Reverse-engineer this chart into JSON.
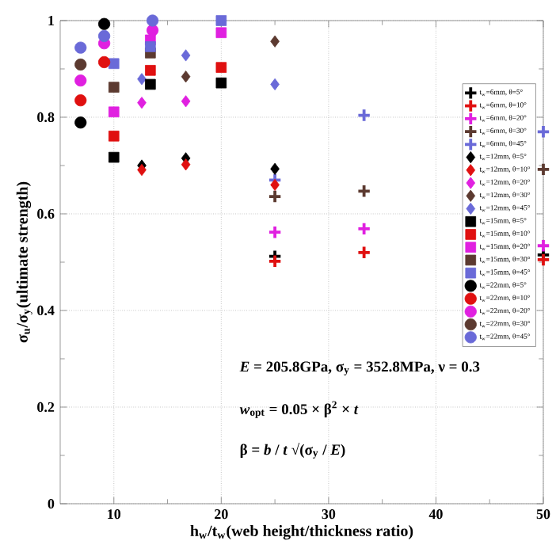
{
  "chart_data": {
    "type": "scatter",
    "xlabel": "h$_{w}$/t$_{w}$(web height/thickness ratio)",
    "ylabel": "σ$_{u}$/σ$_{y}$(ultimate strength)",
    "xlim": [
      5,
      50
    ],
    "ylim": [
      0,
      1
    ],
    "xticks": [
      10,
      20,
      30,
      40,
      50
    ],
    "yticks": [
      0,
      0.2,
      0.4,
      0.6,
      0.8,
      1
    ],
    "grid": true,
    "legend": "right",
    "annotations": [
      "*E* = 205.8GPa, σ$_{y}$ = 352.8MPa, ν = 0.3",
      "*w*$_{opt}$ = 0.05 × β$^{2}$ × *t*",
      "β = *b* / *t* √(σ$_{y}$ / *E*)"
    ],
    "series": [
      {
        "name": "t$_{w}$=6mm, θ=5°",
        "color": "#000000",
        "marker": "cross",
        "x": [
          25,
          50
        ],
        "values": [
          0.512,
          0.515
        ]
      },
      {
        "name": "t$_{w}$=6mm, θ=10°",
        "color": "#e01010",
        "marker": "cross",
        "x": [
          25,
          33.3,
          50
        ],
        "values": [
          0.502,
          0.52,
          0.505
        ]
      },
      {
        "name": "t$_{w}$=6mm, θ=20°",
        "color": "#e020e0",
        "marker": "cross",
        "x": [
          25,
          33.3,
          50
        ],
        "values": [
          0.562,
          0.569,
          0.534
        ]
      },
      {
        "name": "t$_{w}$=6mm, θ=30°",
        "color": "#5c3a30",
        "marker": "cross",
        "x": [
          25,
          33.3,
          50
        ],
        "values": [
          0.636,
          0.647,
          0.692
        ]
      },
      {
        "name": "t$_{w}$=6mm, θ=45°",
        "color": "#6a6ad8",
        "marker": "cross",
        "x": [
          25,
          33.3,
          50
        ],
        "values": [
          0.67,
          0.804,
          0.77
        ]
      },
      {
        "name": "t$_{w}$=12mm, θ=5°",
        "color": "#000000",
        "marker": "diamond",
        "x": [
          12.6,
          16.7,
          25
        ],
        "values": [
          0.7,
          0.715,
          0.693
        ]
      },
      {
        "name": "t$_{w}$=12mm, θ=10°",
        "color": "#e01010",
        "marker": "diamond",
        "x": [
          12.6,
          16.7,
          25
        ],
        "values": [
          0.691,
          0.702,
          0.66
        ]
      },
      {
        "name": "t$_{w}$=12mm, θ=20°",
        "color": "#e020e0",
        "marker": "diamond",
        "x": [
          12.6,
          16.7
        ],
        "values": [
          0.83,
          0.833
        ]
      },
      {
        "name": "t$_{w}$=12mm, θ=30°",
        "color": "#5c3a30",
        "marker": "diamond",
        "x": [
          16.7,
          25
        ],
        "values": [
          0.884,
          0.957
        ]
      },
      {
        "name": "t$_{w}$=12mm, θ=45°",
        "color": "#6a6ad8",
        "marker": "diamond",
        "x": [
          12.6,
          16.7,
          25
        ],
        "values": [
          0.879,
          0.928,
          0.868
        ]
      },
      {
        "name": "t$_{w}$=15mm, θ=5°",
        "color": "#000000",
        "marker": "square",
        "x": [
          10,
          13.4,
          20
        ],
        "values": [
          0.717,
          0.868,
          0.871
        ]
      },
      {
        "name": "t$_{w}$=15mm, θ=10°",
        "color": "#e01010",
        "marker": "square",
        "x": [
          10,
          13.4,
          20
        ],
        "values": [
          0.761,
          0.897,
          0.903
        ]
      },
      {
        "name": "t$_{w}$=15mm, θ=20°",
        "color": "#e020e0",
        "marker": "square",
        "x": [
          10,
          13.4,
          20
        ],
        "values": [
          0.811,
          0.96,
          0.975
        ]
      },
      {
        "name": "t$_{w}$=15mm, θ=30°",
        "color": "#5c3a30",
        "marker": "square",
        "x": [
          10,
          13.4
        ],
        "values": [
          0.862,
          0.933
        ]
      },
      {
        "name": "t$_{w}$=15mm, θ=45°",
        "color": "#6a6ad8",
        "marker": "square",
        "x": [
          10,
          13.4,
          20
        ],
        "values": [
          0.911,
          0.946,
          1.0
        ]
      },
      {
        "name": "t$_{w}$=22mm, θ=5°",
        "color": "#000000",
        "marker": "circle",
        "x": [
          6.9,
          9.1
        ],
        "values": [
          0.789,
          0.993
        ]
      },
      {
        "name": "t$_{w}$=22mm, θ=10°",
        "color": "#e01010",
        "marker": "circle",
        "x": [
          6.9,
          9.1
        ],
        "values": [
          0.835,
          0.914
        ]
      },
      {
        "name": "t$_{w}$=22mm, θ=20°",
        "color": "#e020e0",
        "marker": "circle",
        "x": [
          6.9,
          9.1,
          13.6
        ],
        "values": [
          0.876,
          0.953,
          0.98
        ]
      },
      {
        "name": "t$_{w}$=22mm, θ=30°",
        "color": "#5c3a30",
        "marker": "circle",
        "x": [
          6.9
        ],
        "values": [
          0.909
        ]
      },
      {
        "name": "t$_{w}$=22mm, θ=45°",
        "color": "#6a6ad8",
        "marker": "circle",
        "x": [
          6.9,
          9.1,
          13.6
        ],
        "values": [
          0.944,
          0.968,
          1.0
        ]
      }
    ]
  }
}
